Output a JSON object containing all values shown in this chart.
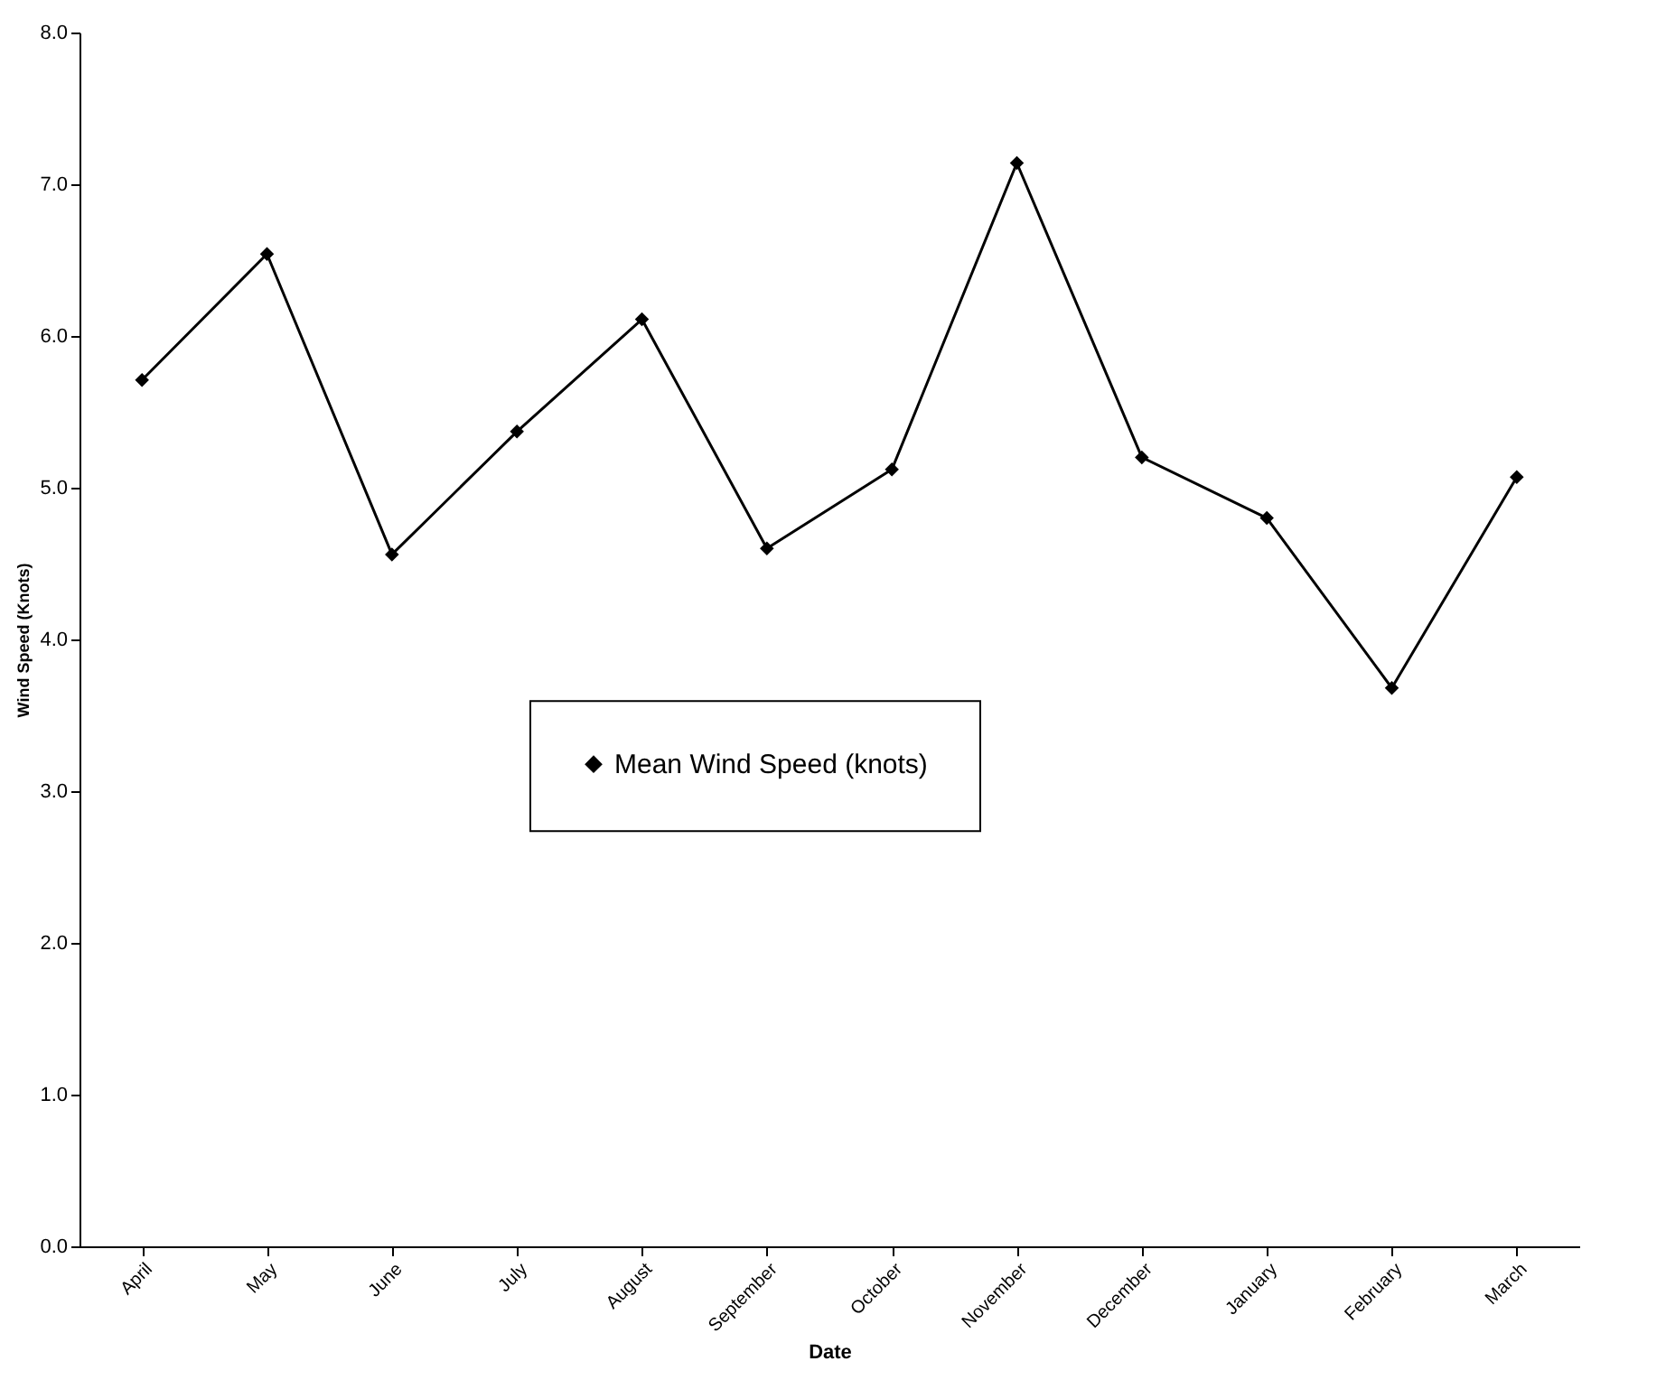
{
  "chart_data": {
    "type": "line",
    "xlabel": "Date",
    "ylabel": "Wind Speed (Knots)",
    "categories": [
      "April",
      "May",
      "June",
      "July",
      "August",
      "September",
      "October",
      "November",
      "December",
      "January",
      "February",
      "March"
    ],
    "series": [
      {
        "name": "Mean Wind Speed (knots)",
        "color": "#000000",
        "values": [
          5.71,
          6.54,
          4.56,
          5.37,
          6.11,
          4.6,
          5.12,
          7.14,
          5.2,
          4.8,
          3.68,
          5.07
        ]
      }
    ],
    "ylim": [
      0,
      8
    ],
    "yticks": [
      {
        "value": 0,
        "label": "0.0"
      },
      {
        "value": 1,
        "label": "1.0"
      },
      {
        "value": 2,
        "label": "2.0"
      },
      {
        "value": 3,
        "label": "3.0"
      },
      {
        "value": 4,
        "label": "4.0"
      },
      {
        "value": 5,
        "label": "5.0"
      },
      {
        "value": 6,
        "label": "6.0"
      },
      {
        "value": 7,
        "label": "7.0"
      },
      {
        "value": 8,
        "label": "8.0"
      }
    ],
    "grid": false,
    "legend": "center",
    "marker": "diamond",
    "line_style": "solid"
  }
}
